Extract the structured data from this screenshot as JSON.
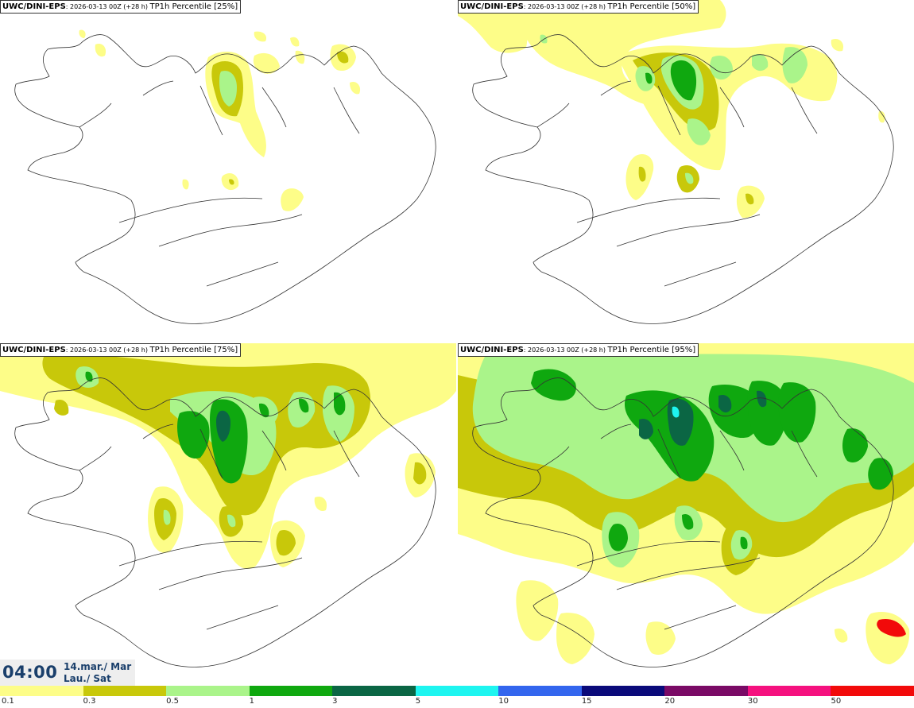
{
  "panels": [
    {
      "model": "UWC/DINI-EPS",
      "run": ": 2026-03-13 00Z (+28 h) ",
      "variable": "TP1h Percentile [25%]"
    },
    {
      "model": "UWC/DINI-EPS",
      "run": ": 2026-03-13 00Z (+28 h) ",
      "variable": "TP1h Percentile [50%]"
    },
    {
      "model": "UWC/DINI-EPS",
      "run": ": 2026-03-13 00Z (+28 h) ",
      "variable": "TP1h Percentile [75%]"
    },
    {
      "model": "UWC/DINI-EPS",
      "run": ": 2026-03-13 00Z (+28 h) ",
      "variable": "TP1h Percentile [95%]"
    }
  ],
  "time": {
    "clock": "04:00",
    "date_line1": "14.mar./ Mar",
    "date_line2": "Lau./ Sat"
  },
  "colorbar": {
    "ticks": [
      "0.1",
      "0.3",
      "0.5",
      "1",
      "3",
      "5",
      "10",
      "15",
      "20",
      "30",
      "50"
    ],
    "colors": [
      "#fdfd88",
      "#c8c80a",
      "#aaf48a",
      "#0fa80f",
      "#0b6644",
      "#1ef5f0",
      "#3366ee",
      "#0a0a7a",
      "#7a0a66",
      "#f5117f",
      "#f20a0a"
    ]
  }
}
